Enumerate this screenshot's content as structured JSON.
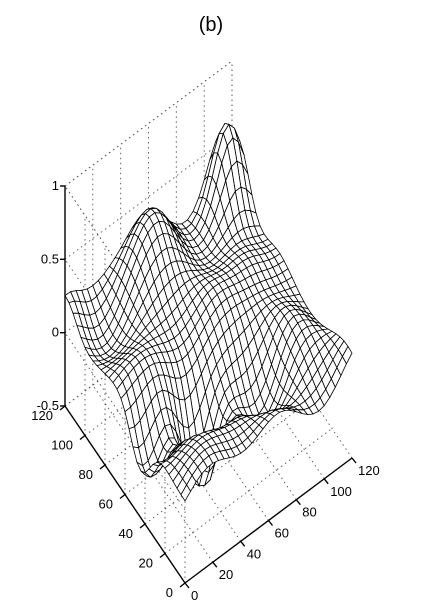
{
  "chart_data": {
    "type": "surface",
    "title": "(b)",
    "xlabel": "",
    "ylabel": "",
    "zlabel": "",
    "x_ticks": [
      "0",
      "20",
      "40",
      "60",
      "80",
      "100",
      "120"
    ],
    "y_ticks": [
      "0",
      "20",
      "40",
      "60",
      "80",
      "100",
      "120"
    ],
    "z_ticks": [
      "-0.5",
      "0",
      "0.5",
      "1"
    ],
    "xlim": [
      0,
      120
    ],
    "ylim": [
      0,
      120
    ],
    "zlim": [
      -0.5,
      1
    ],
    "grid": true,
    "wireframe": true,
    "colors": {
      "mesh": "#000000",
      "grid": "#555555"
    }
  }
}
